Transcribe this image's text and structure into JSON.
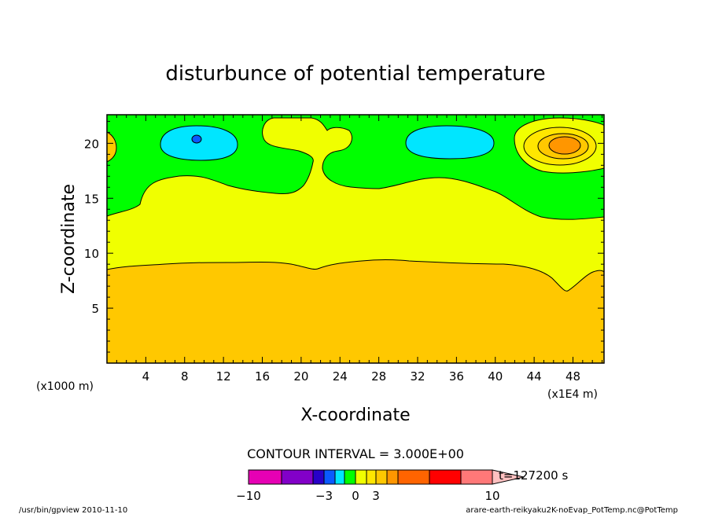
{
  "chart_data": {
    "type": "heatmap",
    "title": "disturbunce of potential temperature",
    "xlabel": "X-coordinate",
    "ylabel": "Z-coordinate",
    "x_unit_left": "(x1000 m)",
    "x_unit_right": "(x1E4 m)",
    "x_ticks": [
      4,
      8,
      12,
      16,
      20,
      24,
      28,
      32,
      36,
      40,
      44,
      48
    ],
    "y_ticks": [
      5,
      10,
      15,
      20
    ],
    "xlim": [
      0,
      51.2
    ],
    "ylim": [
      0,
      22.6
    ],
    "contour_interval_label": "CONTOUR INTERVAL = 3.000E+00",
    "time_label": "t=127200 s",
    "colorbar": {
      "tick_labels": [
        "−10",
        "−3",
        "0",
        "3",
        "10"
      ],
      "tick_values": [
        -10,
        -3,
        0,
        3,
        10
      ],
      "colors": [
        "#e600b4",
        "#8200c8",
        "#2800c8",
        "#0a5aff",
        "#00e6ff",
        "#00ff00",
        "#f0ff00",
        "#ffe600",
        "#ffc800",
        "#ff9600",
        "#ff6400",
        "#ff0000",
        "#ff7878",
        "#ffc0c0"
      ]
    },
    "regions": [
      {
        "level": "1.5 to 4.5 (orange)",
        "color": "#ffc800",
        "note": "lower layer up to z~8.5-9.5, dip at x~47"
      },
      {
        "level": "0 to 1.5 (yellow)",
        "color": "#f0ff00",
        "note": "middle layer z~9 to 14-17, plume to top near x~21"
      },
      {
        "level": "-1.5 to 0 (green)",
        "color": "#00ff00",
        "note": "upper layer"
      },
      {
        "level": "-3 to -1.5 (cyan)",
        "color": "#00e6ff",
        "note": "cells near x~9, z~20 and x~35, z~20"
      },
      {
        "level": "1.5 to 3 (orange)",
        "color": "#ffc800",
        "note": "cell near x~47, z~20"
      }
    ]
  },
  "footer": {
    "left": "/usr/bin/gpview  2010-11-10",
    "right": "arare-earth-reikyaku2K-noEvap_PotTemp.nc@PotTemp"
  }
}
